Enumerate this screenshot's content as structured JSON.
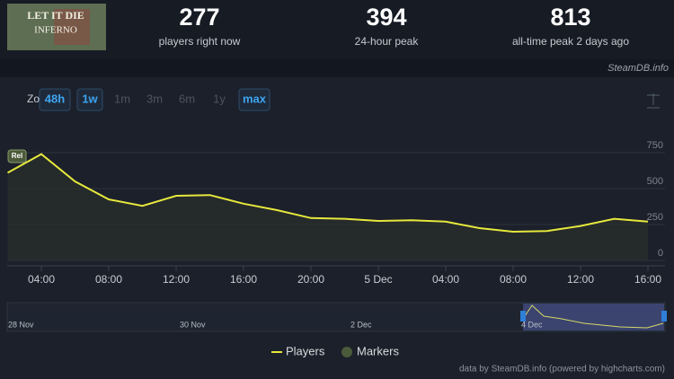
{
  "header": {
    "logo": [
      "LET IT DIE",
      "INFERNO"
    ],
    "stats": [
      {
        "value": "277",
        "label": "players right now"
      },
      {
        "value": "394",
        "label": "24-hour peak"
      },
      {
        "value": "813",
        "label": "all-time peak 2 days ago"
      }
    ],
    "source": "SteamDB.info"
  },
  "zoom": {
    "label": "Zoom",
    "buttons": [
      {
        "label": "48h",
        "active": true
      },
      {
        "label": "1w",
        "active": true
      },
      {
        "label": "1m",
        "active": false
      },
      {
        "label": "3m",
        "active": false
      },
      {
        "label": "6m",
        "active": false
      },
      {
        "label": "1y",
        "active": false
      },
      {
        "label": "max",
        "active": true
      }
    ]
  },
  "chart_data": {
    "type": "line",
    "categories": [
      null,
      "04:00",
      null,
      "08:00",
      null,
      "12:00",
      null,
      "16:00",
      null,
      "20:00",
      null,
      "5 Dec",
      null,
      "04:00",
      null,
      "08:00",
      null,
      "12:00",
      null,
      "16:00"
    ],
    "series": [
      {
        "name": "Players",
        "color": "#e6e83c",
        "values": [
          610,
          740,
          550,
          425,
          380,
          450,
          455,
          395,
          350,
          295,
          290,
          275,
          280,
          270,
          225,
          200,
          205,
          240,
          290,
          270
        ]
      }
    ],
    "markers": [
      {
        "label": "Rel"
      }
    ],
    "ylim": [
      0,
      950
    ],
    "yticks": [
      0,
      250,
      500,
      750
    ],
    "grid": true
  },
  "navigator": {
    "labels": [
      "28 Nov",
      "30 Nov",
      "2 Dec",
      "4 Dec"
    ]
  },
  "legend": {
    "markers": "Markers"
  },
  "credits": "data by SteamDB.info (powered by highcharts.com)"
}
